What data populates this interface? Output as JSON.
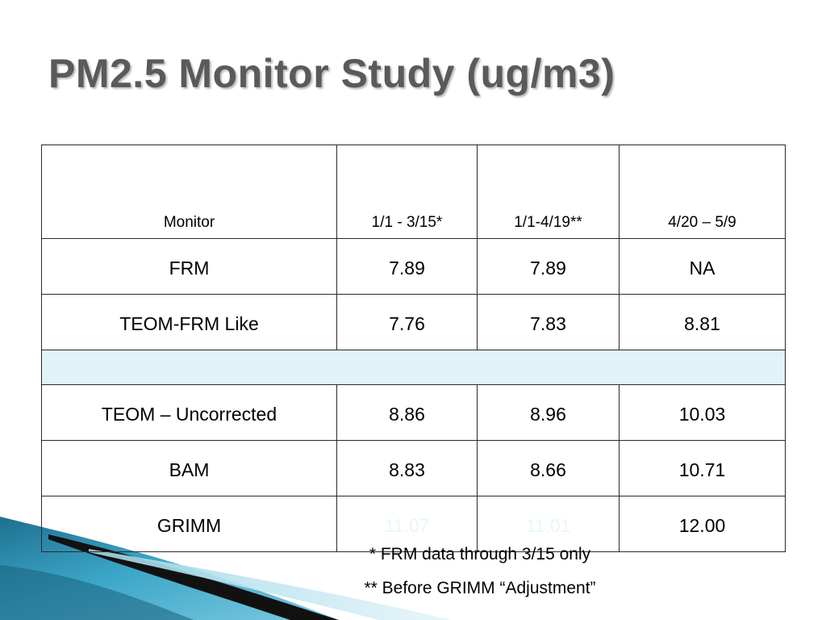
{
  "slide": {
    "title": "PM2.5 Monitor Study (ug/m3)"
  },
  "table": {
    "headers": [
      "Monitor",
      "1/1 - 3/15*",
      "1/1-4/19**",
      "4/20 – 5/9"
    ],
    "rows": [
      [
        "FRM",
        "7.89",
        "7.89",
        "NA"
      ],
      [
        "TEOM-FRM Like",
        "7.76",
        "7.83",
        "8.81"
      ],
      [
        "TEOM – Uncorrected",
        "8.86",
        "8.96",
        "10.03"
      ],
      [
        "BAM",
        "8.83",
        "8.66",
        "10.71"
      ],
      [
        "GRIMM",
        "11.07",
        "11.01",
        "12.00"
      ]
    ]
  },
  "footnotes": {
    "note_1": "* FRM data through 3/15 only",
    "note_2": "** Before GRIMM “Adjustment”"
  },
  "colors": {
    "title": "#5a5a5a",
    "spacer_row": "#dff3f8",
    "faded_text": "#e8f6fb",
    "accent_teal": "#2a8fb0"
  }
}
